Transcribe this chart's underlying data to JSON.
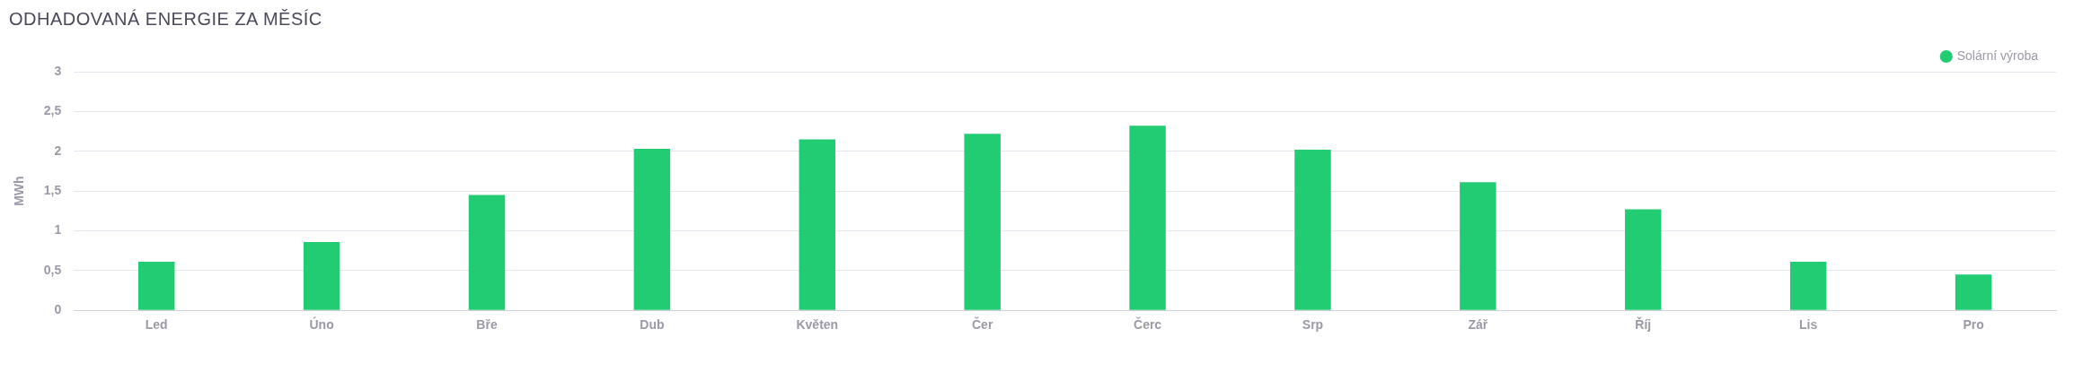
{
  "chart_data": {
    "type": "bar",
    "title": "ODHADOVANÁ ENERGIE ZA MĚSÍC",
    "ylabel": "MWh",
    "categories": [
      "Led",
      "Úno",
      "Bře",
      "Dub",
      "Květen",
      "Čer",
      "Čerc",
      "Srp",
      "Zář",
      "Říj",
      "Lis",
      "Pro"
    ],
    "series": [
      {
        "name": "Solární výroba",
        "color": "#22cc72",
        "values": [
          0.61,
          0.86,
          1.45,
          2.03,
          2.15,
          2.22,
          2.32,
          2.02,
          1.61,
          1.27,
          0.61,
          0.45
        ]
      }
    ],
    "ylim": [
      0,
      3
    ],
    "yticks": [
      0,
      {
        "value": 0.5,
        "label": "0,5"
      },
      1,
      {
        "value": 1.5,
        "label": "1,5"
      },
      2,
      {
        "value": 2.5,
        "label": "2,5"
      },
      3
    ],
    "grid": "y",
    "legend": "top right"
  }
}
